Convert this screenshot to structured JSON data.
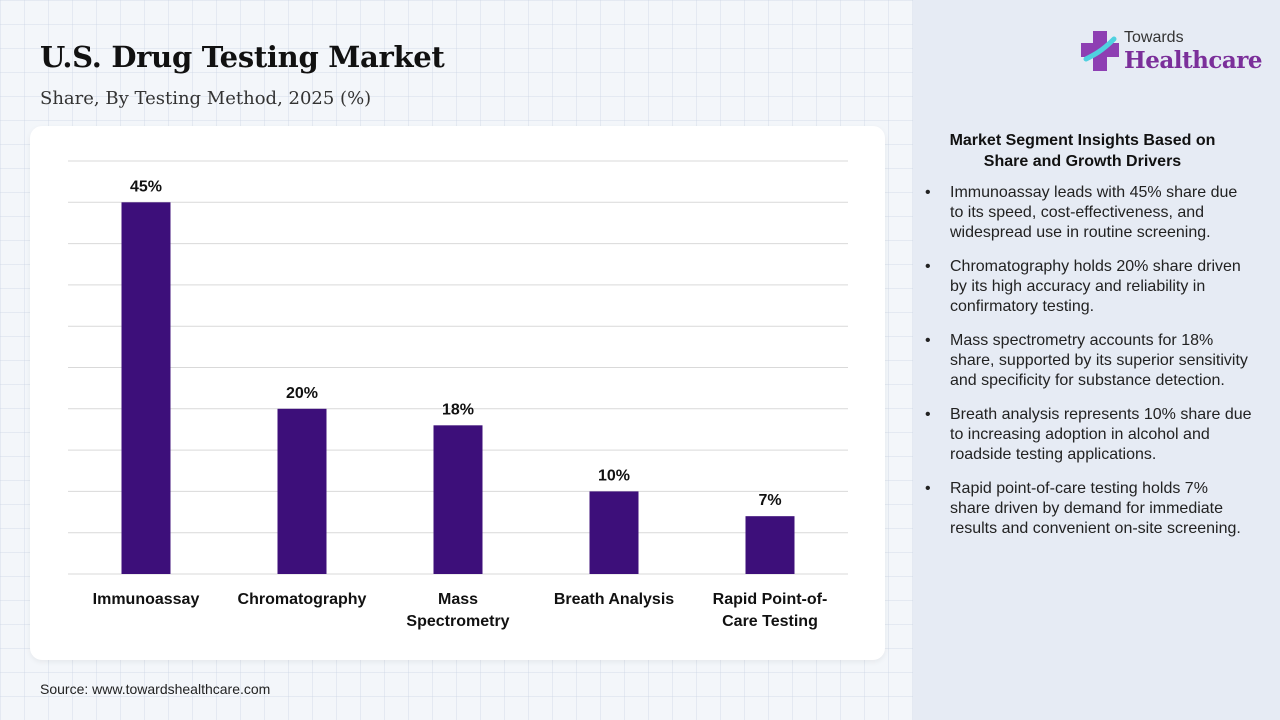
{
  "header": {
    "title": "U.S. Drug Testing Market",
    "subtitle": "Share, By Testing Method, 2025 (%)"
  },
  "logo": {
    "line1": "Towards",
    "line2": "Healthcare"
  },
  "colors": {
    "bar": "#3d0f7a",
    "grid": "#d9d9d9",
    "brand": "#7b2f9a"
  },
  "chart_data": {
    "type": "bar",
    "categories": [
      "Immunoassay",
      "Chromatography",
      "Mass Spectrometry",
      "Breath Analysis",
      "Rapid Point-of-Care Testing"
    ],
    "category_lines": [
      [
        "Immunoassay"
      ],
      [
        "Chromatography"
      ],
      [
        "Mass",
        "Spectrometry"
      ],
      [
        "Breath Analysis"
      ],
      [
        "Rapid Point-of-",
        "Care Testing"
      ]
    ],
    "values": [
      45,
      20,
      18,
      10,
      7
    ],
    "data_labels": [
      "45%",
      "20%",
      "18%",
      "10%",
      "7%"
    ],
    "title": "",
    "xlabel": "",
    "ylabel": "",
    "ylim": [
      0,
      50
    ],
    "grid": true,
    "legend": "none"
  },
  "insights": {
    "heading_line1": "Market Segment Insights Based on",
    "heading_line2": "Share and Growth Drivers",
    "items": [
      "Immunoassay leads with 45% share due to its speed, cost-effectiveness, and widespread use in routine screening.",
      "Chromatography holds 20% share driven by its high accuracy and reliability in confirmatory testing.",
      "Mass spectrometry accounts for 18% share, supported by its superior sensitivity and specificity for substance detection.",
      "Breath analysis represents 10% share due to increasing adoption in alcohol and roadside testing applications.",
      "Rapid point-of-care testing holds 7% share driven by demand for immediate results and convenient on-site screening."
    ],
    "bullet": "•"
  },
  "footer": {
    "source": "Source: www.towardshealthcare.com"
  }
}
